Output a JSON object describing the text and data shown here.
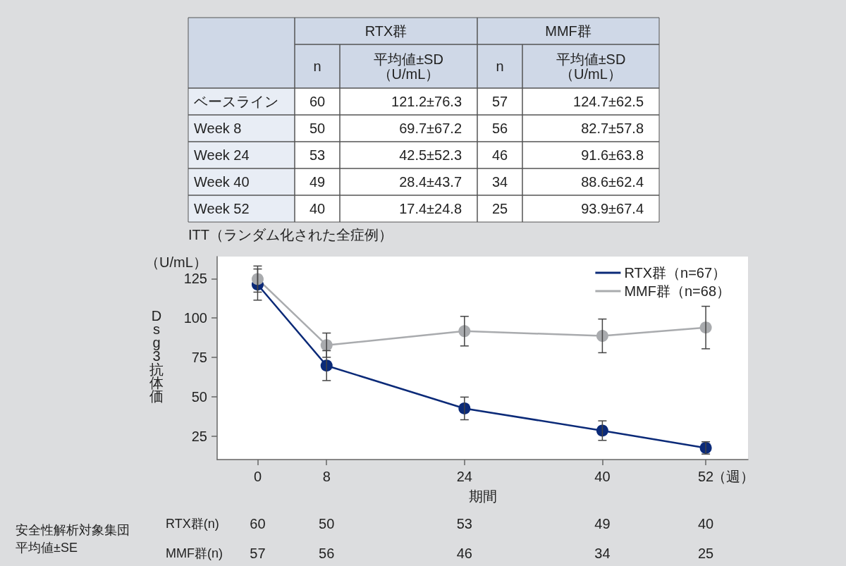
{
  "chart_data": {
    "type": "line",
    "xlabel": "期間",
    "ylabel": "Dsg3抗体価",
    "x": [
      0,
      8,
      24,
      40,
      52
    ],
    "series": [
      {
        "name": "RTX群（n=67）",
        "color": "#0b2a78",
        "values": [
          121.2,
          69.7,
          42.5,
          28.4,
          17.4
        ],
        "errors": [
          9.9,
          9.5,
          7.2,
          6.2,
          3.9
        ]
      },
      {
        "name": "MMF群（n=68）",
        "color": "#a9abae",
        "values": [
          124.7,
          82.7,
          91.6,
          88.6,
          93.9
        ],
        "errors": [
          8.3,
          7.7,
          9.4,
          10.7,
          13.5
        ]
      }
    ],
    "xlim": [
      -4.7,
      56.9
    ],
    "xticks": [
      0,
      8,
      24,
      40,
      52
    ],
    "ylim": [
      10,
      139
    ],
    "yticks": [
      25,
      50,
      75,
      100,
      125
    ],
    "grid": false,
    "legend": "top right",
    "marker": "circle",
    "line_style": "solid",
    "annotations": [
      "RTX群",
      "MMF群",
      "n",
      "平均値±SD\n（U/mL）",
      "n",
      "平均値±SD\n（U/mL）",
      "ベースライン",
      "60",
      "121.2±76.3",
      "57",
      "124.7±62.5",
      "Week 8",
      "50",
      "69.7±67.2",
      "56",
      "82.7±57.8",
      "Week 24",
      "53",
      "42.5±52.3",
      "46",
      "91.6±63.8",
      "Week 40",
      "49",
      "28.4±43.7",
      "34",
      "88.6±62.4",
      "Week 52",
      "40",
      "17.4±24.8",
      "25",
      "93.9±67.4",
      "ITT（ランダム化された全症例）",
      "（U/mL）",
      "（週）",
      "安全性解析対象集団",
      "平均値±SE",
      "RTX群(n)",
      "MMF群(n)",
      "60",
      "50",
      "53",
      "49",
      "40",
      "57",
      "56",
      "46",
      "34",
      "25"
    ]
  }
}
